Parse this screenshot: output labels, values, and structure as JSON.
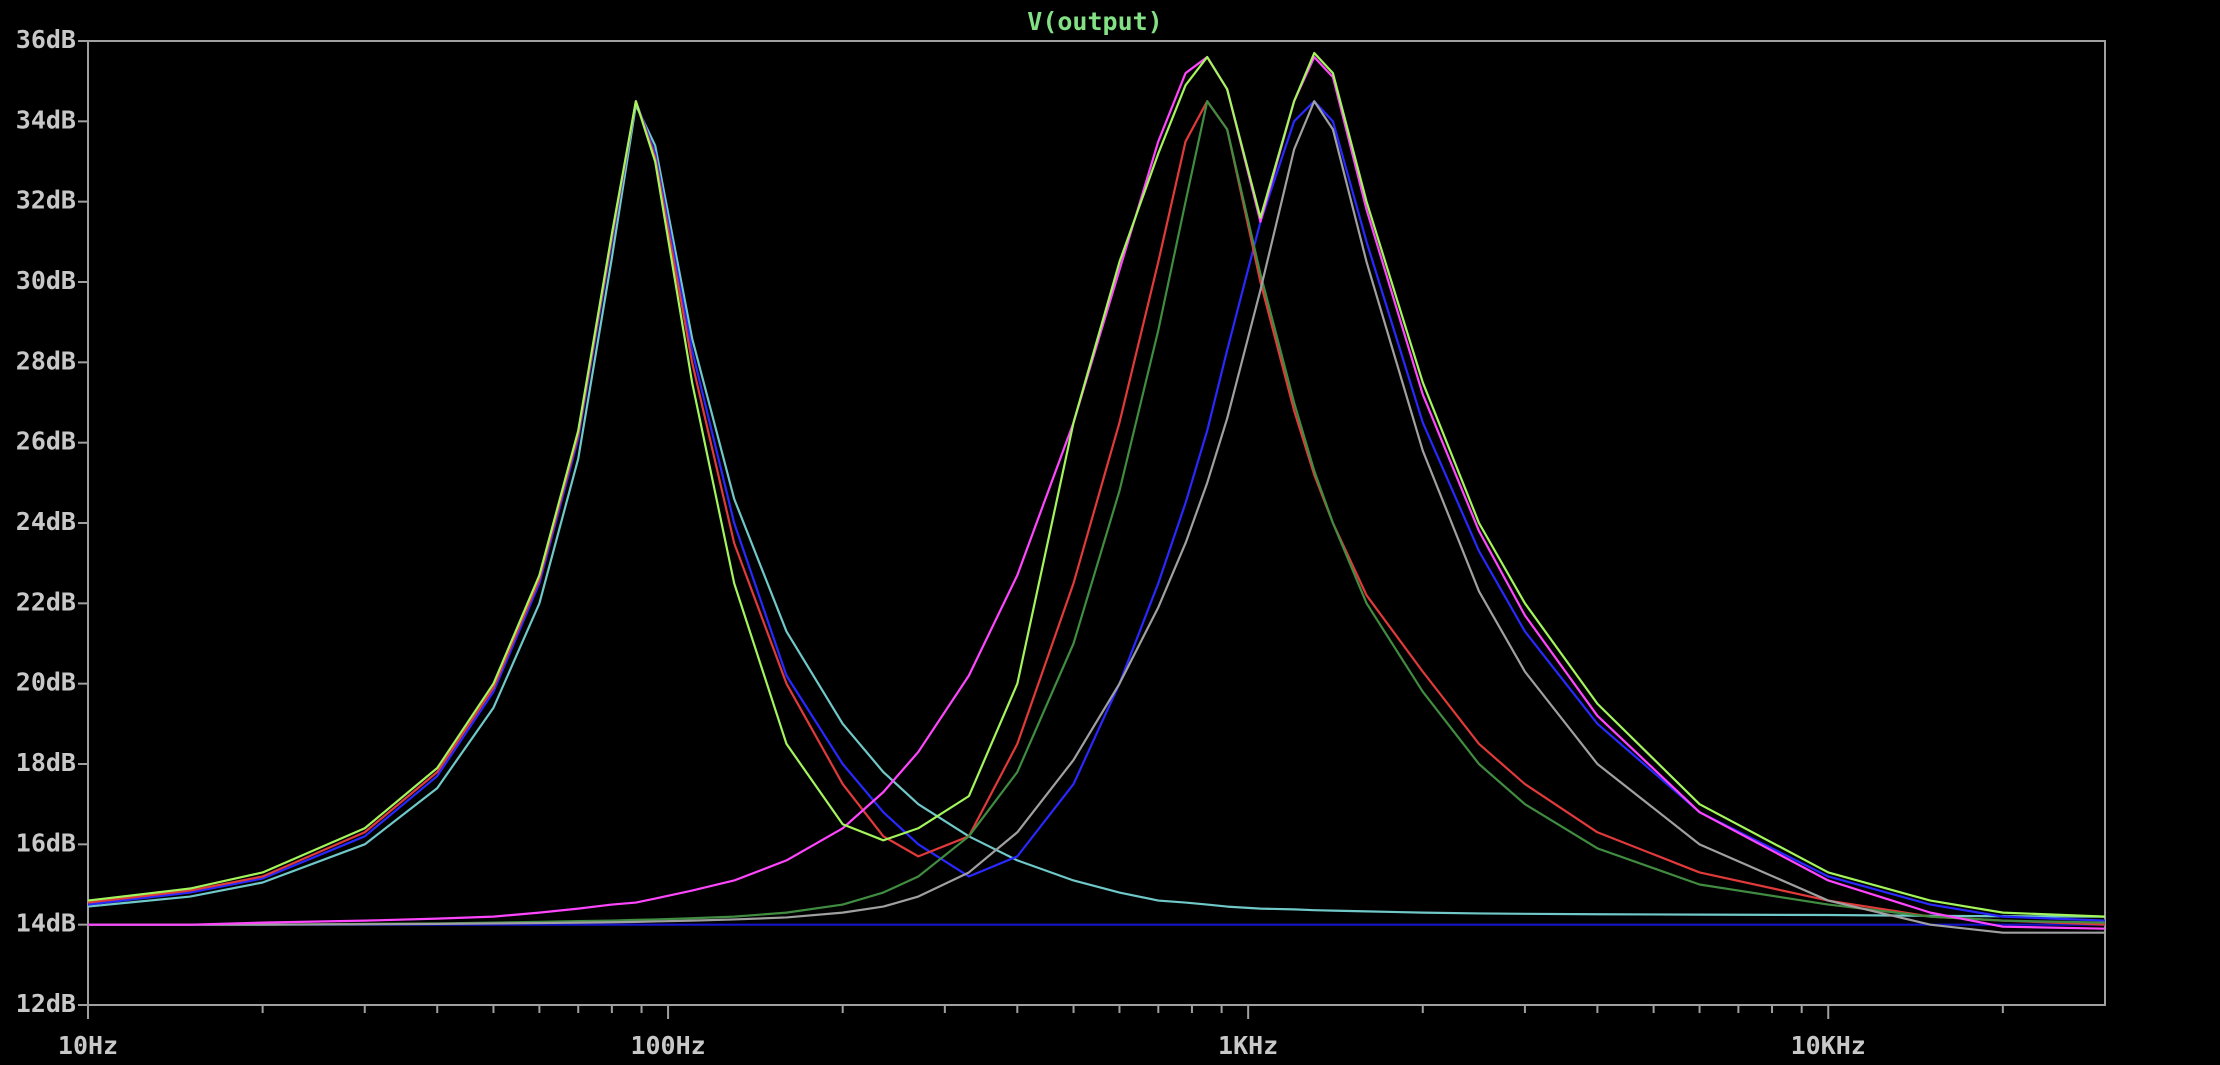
{
  "chart_data": {
    "type": "line",
    "title": "V(output)",
    "xscale": "log",
    "xlim": [
      10,
      30000
    ],
    "ylim": [
      12,
      36
    ],
    "grid": false,
    "xticks": [
      {
        "value": 10,
        "label": "10Hz"
      },
      {
        "value": 100,
        "label": "100Hz"
      },
      {
        "value": 1000,
        "label": "1KHz"
      },
      {
        "value": 10000,
        "label": "10KHz"
      }
    ],
    "xminorticks": [
      20,
      30,
      40,
      50,
      60,
      70,
      80,
      90,
      200,
      300,
      400,
      500,
      600,
      700,
      800,
      900,
      2000,
      3000,
      4000,
      5000,
      6000,
      7000,
      8000,
      9000,
      20000
    ],
    "yticks": [
      {
        "value": 12,
        "label": "12dB"
      },
      {
        "value": 14,
        "label": "14dB"
      },
      {
        "value": 16,
        "label": "16dB"
      },
      {
        "value": 18,
        "label": "18dB"
      },
      {
        "value": 20,
        "label": "20dB"
      },
      {
        "value": 22,
        "label": "22dB"
      },
      {
        "value": 24,
        "label": "24dB"
      },
      {
        "value": 26,
        "label": "26dB"
      },
      {
        "value": 28,
        "label": "28dB"
      },
      {
        "value": 30,
        "label": "30dB"
      },
      {
        "value": 32,
        "label": "32dB"
      },
      {
        "value": 34,
        "label": "34dB"
      },
      {
        "value": 36,
        "label": "36dB"
      }
    ],
    "x": [
      10,
      15,
      20,
      30,
      40,
      50,
      60,
      70,
      80,
      88,
      95,
      110,
      130,
      160,
      200,
      235,
      270,
      330,
      400,
      500,
      600,
      700,
      780,
      850,
      920,
      1050,
      1200,
      1300,
      1400,
      1600,
      2000,
      2500,
      3000,
      4000,
      6000,
      10000,
      15000,
      20000,
      30000
    ],
    "series": [
      {
        "color": "#1414c8",
        "values": [
          14,
          14,
          14,
          14,
          14,
          14,
          14,
          14,
          14,
          14,
          14,
          14,
          14,
          14,
          14,
          14,
          14,
          14,
          14,
          14,
          14,
          14,
          14,
          14,
          14,
          14,
          14,
          14,
          14,
          14,
          14,
          14,
          14,
          14,
          14,
          14,
          14,
          14,
          14
        ]
      },
      {
        "color": "#70c8c8",
        "values": [
          14.45,
          14.7,
          15.05,
          16.0,
          17.4,
          19.4,
          22.0,
          25.6,
          30.6,
          34.4,
          33.4,
          28.6,
          24.6,
          21.3,
          19.0,
          17.8,
          17.0,
          16.2,
          15.6,
          15.1,
          14.8,
          14.6,
          14.55,
          14.5,
          14.45,
          14.4,
          14.38,
          14.36,
          14.35,
          14.33,
          14.3,
          14.28,
          14.27,
          14.26,
          14.25,
          14.24,
          14.22,
          14.21,
          14.2
        ]
      },
      {
        "color": "#2828ff",
        "values": [
          14.5,
          14.8,
          15.15,
          16.2,
          17.7,
          19.8,
          22.5,
          26.1,
          31.0,
          34.5,
          33.2,
          28.3,
          24.0,
          20.2,
          18.0,
          16.8,
          16.0,
          15.2,
          15.7,
          17.5,
          20.0,
          22.5,
          24.5,
          26.3,
          28.3,
          31.5,
          34.0,
          34.5,
          34.0,
          31.0,
          26.5,
          23.3,
          21.3,
          19.0,
          16.8,
          15.2,
          14.5,
          14.2,
          14.1
        ]
      },
      {
        "color": "#e03a3a",
        "values": [
          14.55,
          14.85,
          15.2,
          16.3,
          17.8,
          19.9,
          22.6,
          26.2,
          31.1,
          34.5,
          33.1,
          28.0,
          23.5,
          20.0,
          17.5,
          16.2,
          15.7,
          16.2,
          18.5,
          22.5,
          26.5,
          30.5,
          33.5,
          34.5,
          33.8,
          30.0,
          26.8,
          25.2,
          24.0,
          22.2,
          20.3,
          18.5,
          17.5,
          16.3,
          15.3,
          14.6,
          14.2,
          14.1,
          14.0
        ]
      },
      {
        "color": "#408c40",
        "values": [
          14.0,
          14.0,
          14.0,
          14.02,
          14.03,
          14.05,
          14.07,
          14.09,
          14.1,
          14.12,
          14.13,
          14.16,
          14.2,
          14.3,
          14.5,
          14.8,
          15.2,
          16.2,
          17.8,
          21.0,
          24.8,
          28.8,
          32.0,
          34.5,
          33.8,
          30.2,
          27.0,
          25.3,
          24.0,
          22.0,
          19.8,
          18.0,
          17.0,
          15.9,
          15.0,
          14.5,
          14.2,
          14.1,
          14.05
        ]
      },
      {
        "color": "#a0a0a0",
        "values": [
          14.0,
          14.0,
          14.0,
          14.01,
          14.02,
          14.03,
          14.04,
          14.05,
          14.06,
          14.07,
          14.08,
          14.1,
          14.13,
          14.18,
          14.3,
          14.45,
          14.7,
          15.3,
          16.3,
          18.1,
          20.0,
          21.9,
          23.5,
          25.0,
          26.6,
          29.8,
          33.3,
          34.5,
          33.8,
          30.5,
          25.8,
          22.3,
          20.3,
          18.0,
          16.0,
          14.6,
          14.0,
          13.8,
          13.8
        ]
      },
      {
        "color": "#ff46ff",
        "values": [
          14.0,
          14.0,
          14.05,
          14.1,
          14.15,
          14.2,
          14.3,
          14.4,
          14.5,
          14.55,
          14.65,
          14.85,
          15.1,
          15.6,
          16.4,
          17.3,
          18.3,
          20.2,
          22.7,
          26.5,
          30.3,
          33.5,
          35.2,
          35.6,
          34.8,
          31.5,
          34.5,
          35.6,
          35.1,
          31.8,
          27.2,
          23.8,
          21.7,
          19.2,
          16.8,
          15.1,
          14.3,
          13.95,
          13.9
        ]
      },
      {
        "color": "#a4f55c",
        "values": [
          14.6,
          14.9,
          15.3,
          16.4,
          17.9,
          20.0,
          22.7,
          26.3,
          31.2,
          34.5,
          33.0,
          27.5,
          22.5,
          18.5,
          16.5,
          16.1,
          16.4,
          17.2,
          20.0,
          26.5,
          30.5,
          33.2,
          34.9,
          35.6,
          34.8,
          31.6,
          34.5,
          35.7,
          35.2,
          32.0,
          27.5,
          24.0,
          22.0,
          19.5,
          17.0,
          15.3,
          14.6,
          14.3,
          14.2
        ]
      }
    ]
  }
}
